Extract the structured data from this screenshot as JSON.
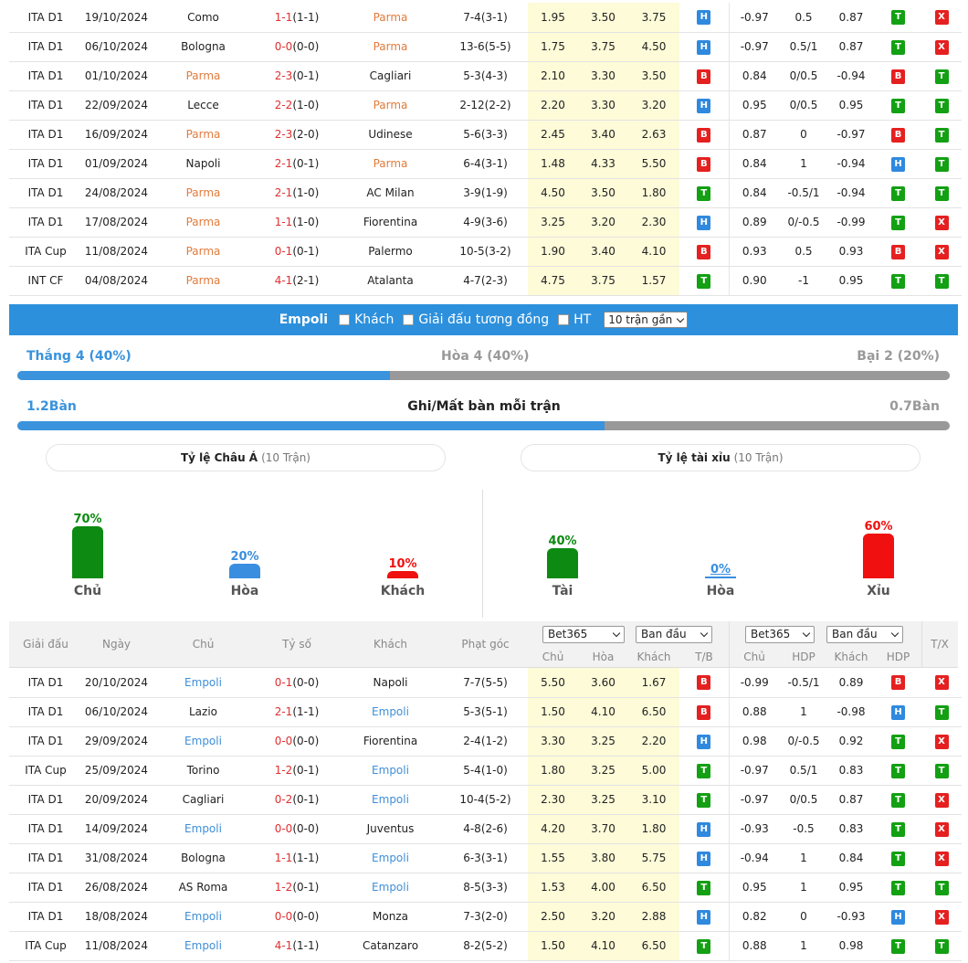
{
  "badge_colors": {
    "T": "#13a013",
    "B": "#e52020",
    "H": "#2f89de",
    "X": "#e52020"
  },
  "parma_matches": [
    {
      "league": "ITA D1",
      "date": "19/10/2024",
      "home": "Como",
      "score": "1-1",
      "ht": "(1-1)",
      "away": "Parma",
      "corner": "7-4(3-1)",
      "h": "1.95",
      "d": "3.50",
      "a": "3.75",
      "r1": "H",
      "ah_h": "-0.97",
      "ah": "0.5",
      "ah_a": "0.87",
      "r2": "T",
      "r3": "X",
      "hl": "away"
    },
    {
      "league": "ITA D1",
      "date": "06/10/2024",
      "home": "Bologna",
      "score": "0-0",
      "ht": "(0-0)",
      "away": "Parma",
      "corner": "13-6(5-5)",
      "h": "1.75",
      "d": "3.75",
      "a": "4.50",
      "r1": "H",
      "ah_h": "-0.97",
      "ah": "0.5/1",
      "ah_a": "0.87",
      "r2": "T",
      "r3": "X",
      "hl": "away"
    },
    {
      "league": "ITA D1",
      "date": "01/10/2024",
      "home": "Parma",
      "score": "2-3",
      "ht": "(0-1)",
      "away": "Cagliari",
      "corner": "5-3(4-3)",
      "h": "2.10",
      "d": "3.30",
      "a": "3.50",
      "r1": "B",
      "ah_h": "0.84",
      "ah": "0/0.5",
      "ah_a": "-0.94",
      "r2": "B",
      "r3": "T",
      "hl": "home"
    },
    {
      "league": "ITA D1",
      "date": "22/09/2024",
      "home": "Lecce",
      "score": "2-2",
      "ht": "(1-0)",
      "away": "Parma",
      "corner": "2-12(2-2)",
      "h": "2.20",
      "d": "3.30",
      "a": "3.20",
      "r1": "H",
      "ah_h": "0.95",
      "ah": "0/0.5",
      "ah_a": "0.95",
      "r2": "T",
      "r3": "T",
      "hl": "away"
    },
    {
      "league": "ITA D1",
      "date": "16/09/2024",
      "home": "Parma",
      "score": "2-3",
      "ht": "(2-0)",
      "away": "Udinese",
      "corner": "5-6(3-3)",
      "h": "2.45",
      "d": "3.40",
      "a": "2.63",
      "r1": "B",
      "ah_h": "0.87",
      "ah": "0",
      "ah_a": "-0.97",
      "r2": "B",
      "r3": "T",
      "hl": "home"
    },
    {
      "league": "ITA D1",
      "date": "01/09/2024",
      "home": "Napoli",
      "score": "2-1",
      "ht": "(0-1)",
      "away": "Parma",
      "corner": "6-4(3-1)",
      "h": "1.48",
      "d": "4.33",
      "a": "5.50",
      "r1": "B",
      "ah_h": "0.84",
      "ah": "1",
      "ah_a": "-0.94",
      "r2": "H",
      "r3": "T",
      "hl": "away"
    },
    {
      "league": "ITA D1",
      "date": "24/08/2024",
      "home": "Parma",
      "score": "2-1",
      "ht": "(1-0)",
      "away": "AC Milan",
      "corner": "3-9(1-9)",
      "h": "4.50",
      "d": "3.50",
      "a": "1.80",
      "r1": "T",
      "ah_h": "0.84",
      "ah": "-0.5/1",
      "ah_a": "-0.94",
      "r2": "T",
      "r3": "T",
      "hl": "home"
    },
    {
      "league": "ITA D1",
      "date": "17/08/2024",
      "home": "Parma",
      "score": "1-1",
      "ht": "(1-0)",
      "away": "Fiorentina",
      "corner": "4-9(3-6)",
      "h": "3.25",
      "d": "3.20",
      "a": "2.30",
      "r1": "H",
      "ah_h": "0.89",
      "ah": "0/-0.5",
      "ah_a": "-0.99",
      "r2": "T",
      "r3": "X",
      "hl": "home"
    },
    {
      "league": "ITA Cup",
      "date": "11/08/2024",
      "home": "Parma",
      "score": "0-1",
      "ht": "(0-1)",
      "away": "Palermo",
      "corner": "10-5(3-2)",
      "h": "1.90",
      "d": "3.40",
      "a": "4.10",
      "r1": "B",
      "ah_h": "0.93",
      "ah": "0.5",
      "ah_a": "0.93",
      "r2": "B",
      "r3": "X",
      "hl": "home"
    },
    {
      "league": "INT CF",
      "date": "04/08/2024",
      "home": "Parma",
      "score": "4-1",
      "ht": "(2-1)",
      "away": "Atalanta",
      "corner": "4-7(2-3)",
      "h": "4.75",
      "d": "3.75",
      "a": "1.57",
      "r1": "T",
      "ah_h": "0.90",
      "ah": "-1",
      "ah_a": "0.95",
      "r2": "T",
      "r3": "T",
      "hl": "home"
    }
  ],
  "team_bar": {
    "team": "Empoli",
    "opt1": "Khách",
    "opt2": "Giải đấu tương đồng",
    "opt3": "HT",
    "select": "10 trận gần"
  },
  "record": {
    "win": "Thắng 4 (40%)",
    "draw": "Hòa 4 (40%)",
    "loss": "Bại 2 (20%)",
    "win_pct": 40,
    "draw_pct": 40,
    "loss_pct": 20,
    "win_color": "#3a93dc",
    "draw_color": "#999999",
    "loss_color": "#999999"
  },
  "goals": {
    "left": "1.2Bàn",
    "title": "Ghi/Mất bàn mỗi trận",
    "right": "0.7Bàn",
    "left_share": 0.63
  },
  "asian": {
    "title": "Tỷ lệ Châu Á",
    "count": "(10 Trận)",
    "bars": [
      {
        "label": "Chủ",
        "pct_text": "70%",
        "pct": 70,
        "color": "#0c8a12"
      },
      {
        "label": "Hòa",
        "pct_text": "20%",
        "pct": 20,
        "color": "#3a8ee0"
      },
      {
        "label": "Khách",
        "pct_text": "10%",
        "pct": 10,
        "color": "#f01010"
      }
    ]
  },
  "ou": {
    "title": "Tỷ lệ tài xỉu",
    "count": "(10 Trận)",
    "bars": [
      {
        "label": "Tài",
        "pct_text": "40%",
        "pct": 40,
        "color": "#0c8a12"
      },
      {
        "label": "Hòa",
        "pct_text": "0%",
        "pct": 0,
        "color": "#3a8ee0"
      },
      {
        "label": "Xỉu",
        "pct_text": "60%",
        "pct": 60,
        "color": "#f01010"
      }
    ]
  },
  "header": {
    "league": "Giải đấu",
    "date": "Ngày",
    "home": "Chủ",
    "score": "Tỷ số",
    "away": "Khách",
    "corner": "Phạt góc",
    "book1": "Bet365",
    "type1": "Ban đầu",
    "book2": "Bet365",
    "type2": "Ban đầu",
    "c_home": "Chủ",
    "c_draw": "Hòa",
    "c_away": "Khách",
    "c_tb": "T/B",
    "c_home2": "Chủ",
    "c_hdp": "HDP",
    "c_away2": "Khách",
    "c_hdp2": "HDP",
    "c_tx": "T/X"
  },
  "empoli_matches": [
    {
      "league": "ITA D1",
      "date": "20/10/2024",
      "home": "Empoli",
      "score": "0-1",
      "ht": "(0-0)",
      "away": "Napoli",
      "corner": "7-7(5-5)",
      "h": "5.50",
      "d": "3.60",
      "a": "1.67",
      "r1": "B",
      "ah_h": "-0.99",
      "ah": "-0.5/1",
      "ah_a": "0.89",
      "r2": "B",
      "r3": "X",
      "hl": "home"
    },
    {
      "league": "ITA D1",
      "date": "06/10/2024",
      "home": "Lazio",
      "score": "2-1",
      "ht": "(1-1)",
      "away": "Empoli",
      "corner": "5-3(5-1)",
      "h": "1.50",
      "d": "4.10",
      "a": "6.50",
      "r1": "B",
      "ah_h": "0.88",
      "ah": "1",
      "ah_a": "-0.98",
      "r2": "H",
      "r3": "T",
      "hl": "away"
    },
    {
      "league": "ITA D1",
      "date": "29/09/2024",
      "home": "Empoli",
      "score": "0-0",
      "ht": "(0-0)",
      "away": "Fiorentina",
      "corner": "2-4(1-2)",
      "h": "3.30",
      "d": "3.25",
      "a": "2.20",
      "r1": "H",
      "ah_h": "0.98",
      "ah": "0/-0.5",
      "ah_a": "0.92",
      "r2": "T",
      "r3": "X",
      "hl": "home"
    },
    {
      "league": "ITA Cup",
      "date": "25/09/2024",
      "home": "Torino",
      "score": "1-2",
      "ht": "(0-1)",
      "away": "Empoli",
      "corner": "5-4(1-0)",
      "h": "1.80",
      "d": "3.25",
      "a": "5.00",
      "r1": "T",
      "ah_h": "-0.97",
      "ah": "0.5/1",
      "ah_a": "0.83",
      "r2": "T",
      "r3": "T",
      "hl": "away"
    },
    {
      "league": "ITA D1",
      "date": "20/09/2024",
      "home": "Cagliari",
      "score": "0-2",
      "ht": "(0-1)",
      "away": "Empoli",
      "corner": "10-4(5-2)",
      "h": "2.30",
      "d": "3.25",
      "a": "3.10",
      "r1": "T",
      "ah_h": "-0.97",
      "ah": "0/0.5",
      "ah_a": "0.87",
      "r2": "T",
      "r3": "X",
      "hl": "away"
    },
    {
      "league": "ITA D1",
      "date": "14/09/2024",
      "home": "Empoli",
      "score": "0-0",
      "ht": "(0-0)",
      "away": "Juventus",
      "corner": "4-8(2-6)",
      "h": "4.20",
      "d": "3.70",
      "a": "1.80",
      "r1": "H",
      "ah_h": "-0.93",
      "ah": "-0.5",
      "ah_a": "0.83",
      "r2": "T",
      "r3": "X",
      "hl": "home"
    },
    {
      "league": "ITA D1",
      "date": "31/08/2024",
      "home": "Bologna",
      "score": "1-1",
      "ht": "(1-1)",
      "away": "Empoli",
      "corner": "6-3(3-1)",
      "h": "1.55",
      "d": "3.80",
      "a": "5.75",
      "r1": "H",
      "ah_h": "-0.94",
      "ah": "1",
      "ah_a": "0.84",
      "r2": "T",
      "r3": "X",
      "hl": "away"
    },
    {
      "league": "ITA D1",
      "date": "26/08/2024",
      "home": "AS Roma",
      "score": "1-2",
      "ht": "(0-1)",
      "away": "Empoli",
      "corner": "8-5(3-3)",
      "h": "1.53",
      "d": "4.00",
      "a": "6.50",
      "r1": "T",
      "ah_h": "0.95",
      "ah": "1",
      "ah_a": "0.95",
      "r2": "T",
      "r3": "T",
      "hl": "away"
    },
    {
      "league": "ITA D1",
      "date": "18/08/2024",
      "home": "Empoli",
      "score": "0-0",
      "ht": "(0-0)",
      "away": "Monza",
      "corner": "7-3(2-0)",
      "h": "2.50",
      "d": "3.20",
      "a": "2.88",
      "r1": "H",
      "ah_h": "0.82",
      "ah": "0",
      "ah_a": "-0.93",
      "r2": "H",
      "r3": "X",
      "hl": "home"
    },
    {
      "league": "ITA Cup",
      "date": "11/08/2024",
      "home": "Empoli",
      "score": "4-1",
      "ht": "(1-1)",
      "away": "Catanzaro",
      "corner": "8-2(5-2)",
      "h": "1.50",
      "d": "4.10",
      "a": "6.50",
      "r1": "T",
      "ah_h": "0.88",
      "ah": "1",
      "ah_a": "0.98",
      "r2": "T",
      "r3": "T",
      "hl": "home"
    }
  ]
}
